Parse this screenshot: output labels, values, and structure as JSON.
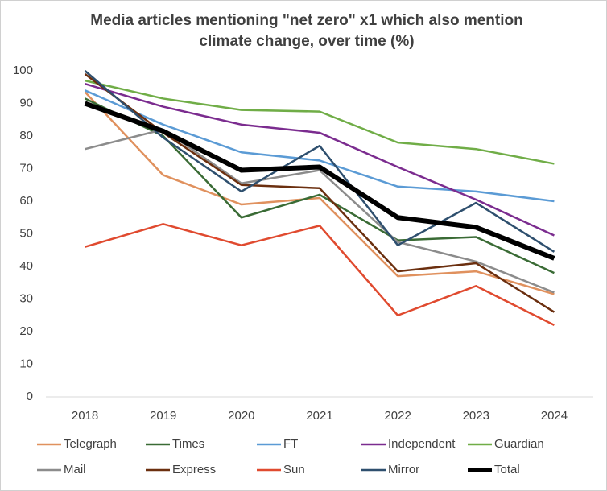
{
  "chart_data": {
    "type": "line",
    "title": "Media articles mentioning \"net zero\" x1 which also mention climate change, over time (%)",
    "categories": [
      "2018",
      "2019",
      "2020",
      "2021",
      "2022",
      "2023",
      "2024"
    ],
    "ylim": [
      0,
      100
    ],
    "yticks": [
      0,
      10,
      20,
      30,
      40,
      50,
      60,
      70,
      80,
      90,
      100
    ],
    "grid": false,
    "legend": "bottom",
    "series": [
      {
        "name": "Telegraph",
        "color": "#e0915e",
        "width": 2.5,
        "values": [
          93.5,
          68,
          59,
          61,
          37,
          38.5,
          31.5
        ]
      },
      {
        "name": "Times",
        "color": "#3a6b35",
        "width": 2.5,
        "values": [
          91.5,
          80,
          55,
          62,
          48,
          49,
          38
        ]
      },
      {
        "name": "FT",
        "color": "#5b9bd5",
        "width": 2.5,
        "values": [
          94,
          83.5,
          75,
          72.5,
          64.5,
          63,
          60
        ]
      },
      {
        "name": "Independent",
        "color": "#7b2c8f",
        "width": 2.5,
        "values": [
          96,
          89,
          83.5,
          81,
          70.5,
          60.5,
          49.5
        ]
      },
      {
        "name": "Guardian",
        "color": "#70ad47",
        "width": 2.5,
        "values": [
          97,
          91.5,
          88,
          87.5,
          78,
          76,
          71.5
        ]
      },
      {
        "name": "Mail",
        "color": "#8c8c8c",
        "width": 2.5,
        "values": [
          76,
          82,
          65.5,
          69.5,
          47.5,
          41.5,
          32
        ]
      },
      {
        "name": "Express",
        "color": "#6b2f0f",
        "width": 2.5,
        "values": [
          99,
          81,
          65,
          64,
          38.5,
          41,
          26
        ]
      },
      {
        "name": "Sun",
        "color": "#e04a2f",
        "width": 2.5,
        "values": [
          46,
          53,
          46.5,
          52.5,
          25,
          34,
          22
        ]
      },
      {
        "name": "Mirror",
        "color": "#2e4f6e",
        "width": 2.5,
        "values": [
          100,
          79.5,
          63,
          77,
          46.5,
          59.5,
          44.5
        ]
      },
      {
        "name": "Total",
        "color": "#000000",
        "width": 6,
        "values": [
          90,
          81.5,
          69.5,
          70.5,
          55,
          52,
          42.5
        ]
      }
    ]
  }
}
